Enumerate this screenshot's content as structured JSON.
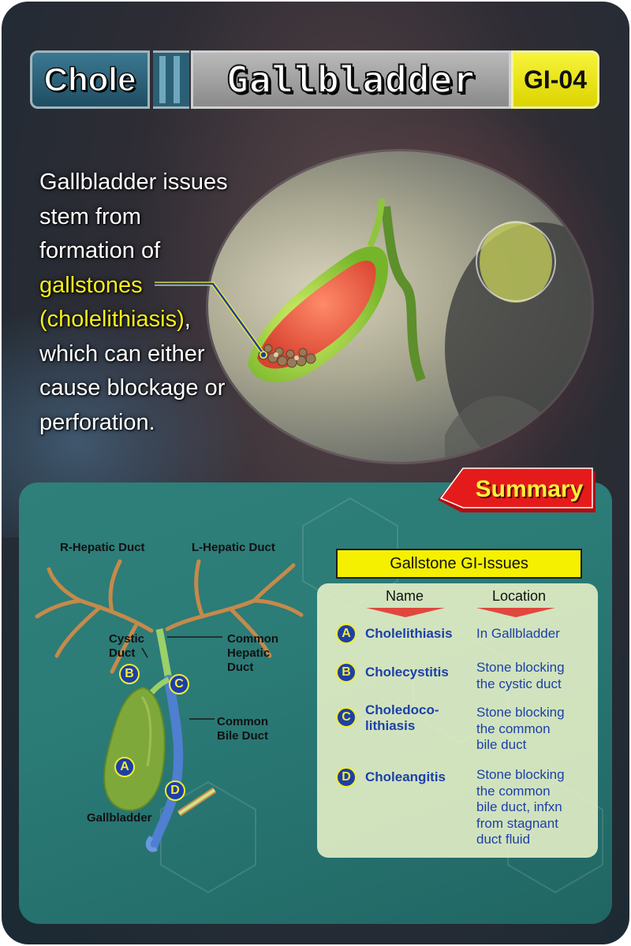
{
  "header": {
    "left": "Chole",
    "title": "Gallbladder",
    "code": "GI-04"
  },
  "intro": {
    "line1": "Gallbladder issues",
    "line2": "stem from",
    "line3": "formation of",
    "highlight1": "gallstones",
    "highlight2": "(cholelithiasis)",
    "line5_suffix": ",",
    "line6": "which can either",
    "line7": "cause blockage or",
    "line8": "perforation."
  },
  "summary_label": "Summary",
  "diagram": {
    "r_hepatic": "R-Hepatic Duct",
    "l_hepatic": "L-Hepatic Duct",
    "cystic_1": "Cystic",
    "cystic_2": "Duct",
    "common_hepatic_1": "Common",
    "common_hepatic_2": "Hepatic",
    "common_hepatic_3": "Duct",
    "common_bile_1": "Common",
    "common_bile_2": "Bile Duct",
    "gallbladder": "Gallbladder",
    "badge_a": "A",
    "badge_b": "B",
    "badge_c": "C",
    "badge_d": "D"
  },
  "table": {
    "title": "Gallstone GI-Issues",
    "col_name": "Name",
    "col_location": "Location",
    "rows": [
      {
        "badge": "A",
        "name1": "Cholelithiasis",
        "name2": "",
        "loc1": "In Gallbladder",
        "loc2": "",
        "loc3": "",
        "loc4": "",
        "loc5": ""
      },
      {
        "badge": "B",
        "name1": "Cholecystitis",
        "name2": "",
        "loc1": "Stone blocking",
        "loc2": "the cystic duct",
        "loc3": "",
        "loc4": "",
        "loc5": ""
      },
      {
        "badge": "C",
        "name1": "Choledoco-",
        "name2": "lithiasis",
        "loc1": "Stone blocking",
        "loc2": "the common",
        "loc3": "bile duct",
        "loc4": "",
        "loc5": ""
      },
      {
        "badge": "D",
        "name1": "Choleangitis",
        "name2": "",
        "loc1": "Stone blocking",
        "loc2": "the common",
        "loc3": "bile duct, infxn",
        "loc4": "from stagnant",
        "loc5": "duct fluid"
      }
    ]
  },
  "colors": {
    "accent_yellow": "#f5ef1a",
    "badge_blue": "#1d3fa8",
    "panel_teal": "#2b7b77",
    "summary_red": "#d41414"
  }
}
